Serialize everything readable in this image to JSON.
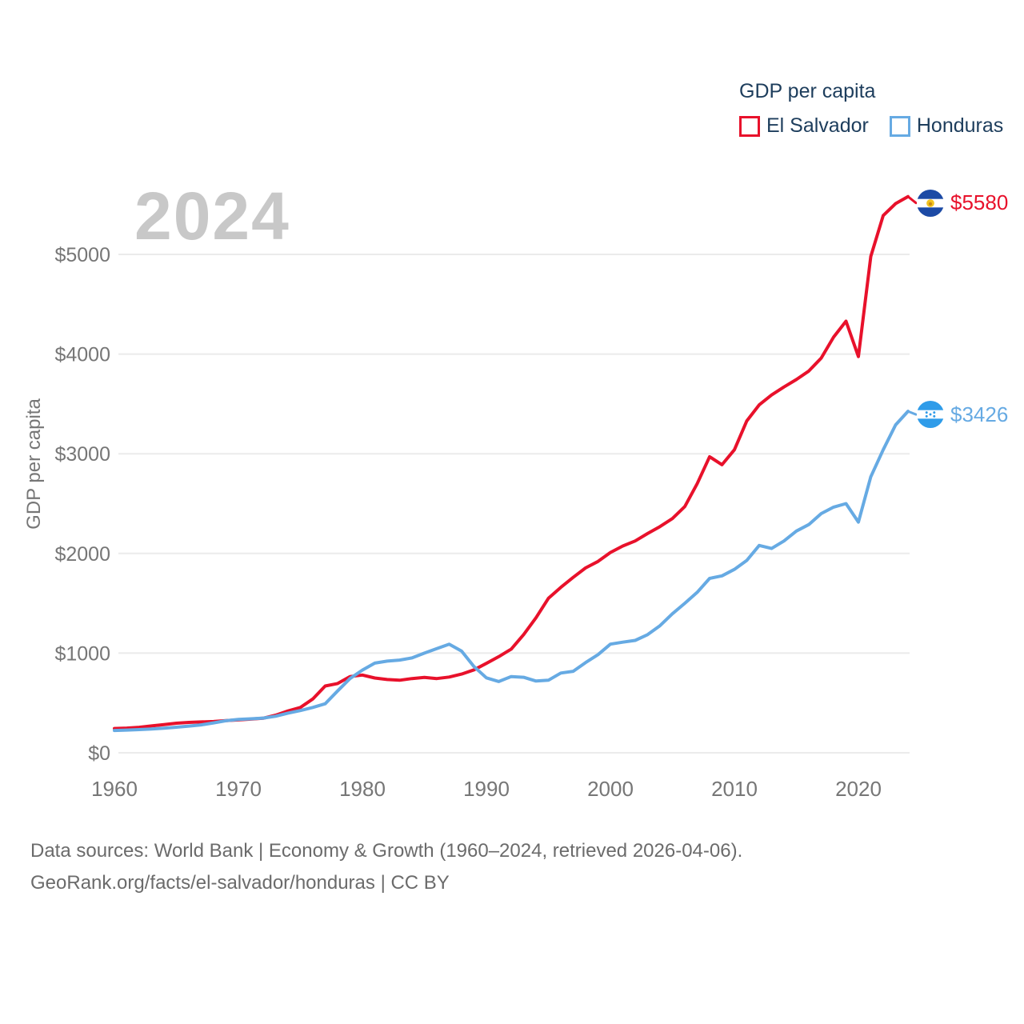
{
  "watermark_year": "2024",
  "legend": {
    "title": "GDP per capita",
    "items": [
      {
        "label": "El Salvador",
        "color": "#e8112b"
      },
      {
        "label": "Honduras",
        "color": "#66aae3"
      }
    ]
  },
  "chart_data": {
    "type": "line",
    "title": "GDP per capita",
    "ylabel": "GDP per capita",
    "xlabel": "",
    "grid": "horizontal",
    "legend_position": "top-right",
    "xlim": [
      1960,
      2024
    ],
    "ylim": [
      0,
      5800
    ],
    "x_ticks": [
      1960,
      1970,
      1980,
      1990,
      2000,
      2010,
      2020
    ],
    "y_ticks": [
      0,
      1000,
      2000,
      3000,
      4000,
      5000
    ],
    "y_tick_prefix": "$",
    "x": [
      1960,
      1961,
      1962,
      1963,
      1964,
      1965,
      1966,
      1967,
      1968,
      1969,
      1970,
      1971,
      1972,
      1973,
      1974,
      1975,
      1976,
      1977,
      1978,
      1979,
      1980,
      1981,
      1982,
      1983,
      1984,
      1985,
      1986,
      1987,
      1988,
      1989,
      1990,
      1991,
      1992,
      1993,
      1994,
      1995,
      1996,
      1997,
      1998,
      1999,
      2000,
      2001,
      2002,
      2003,
      2004,
      2005,
      2006,
      2007,
      2008,
      2009,
      2010,
      2011,
      2012,
      2013,
      2014,
      2015,
      2016,
      2017,
      2018,
      2019,
      2020,
      2021,
      2022,
      2023,
      2024
    ],
    "series": [
      {
        "name": "El Salvador",
        "color": "#e8112b",
        "end_value": 5580,
        "end_label": "$5580",
        "values": [
          244,
          248,
          256,
          270,
          283,
          297,
          305,
          310,
          314,
          323,
          330,
          338,
          347,
          377,
          420,
          455,
          540,
          670,
          695,
          765,
          780,
          750,
          735,
          728,
          745,
          757,
          745,
          760,
          790,
          832,
          897,
          965,
          1040,
          1185,
          1355,
          1550,
          1660,
          1760,
          1855,
          1920,
          2010,
          2075,
          2125,
          2200,
          2270,
          2350,
          2470,
          2700,
          2970,
          2890,
          3040,
          3330,
          3490,
          3590,
          3670,
          3745,
          3830,
          3960,
          4170,
          4330,
          3975,
          4980,
          5390,
          5510,
          5580
        ]
      },
      {
        "name": "Honduras",
        "color": "#66aae3",
        "end_value": 3426,
        "end_label": "$3426",
        "values": [
          224,
          228,
          233,
          239,
          247,
          257,
          268,
          280,
          300,
          322,
          335,
          341,
          348,
          367,
          398,
          424,
          455,
          492,
          620,
          745,
          830,
          900,
          920,
          930,
          952,
          1000,
          1045,
          1090,
          1020,
          865,
          752,
          715,
          765,
          758,
          720,
          728,
          800,
          818,
          905,
          985,
          1090,
          1110,
          1128,
          1185,
          1275,
          1395,
          1500,
          1610,
          1750,
          1775,
          1840,
          1930,
          2080,
          2050,
          2125,
          2225,
          2290,
          2400,
          2465,
          2500,
          2315,
          2770,
          3040,
          3290,
          3426
        ]
      }
    ]
  },
  "icons": {
    "flag_el_salvador": {
      "band": "#1c4aa5",
      "emblem": "#f2c31f",
      "emblem_core": "#c98a12"
    },
    "flag_honduras": {
      "band": "#2f9ce9",
      "star": "#2f9ce9"
    }
  },
  "footer": {
    "line1": "Data sources: World Bank | Economy & Growth (1960–2024, retrieved 2026-04-06).",
    "line2": "GeoRank.org/facts/el-salvador/honduras | CC BY"
  }
}
